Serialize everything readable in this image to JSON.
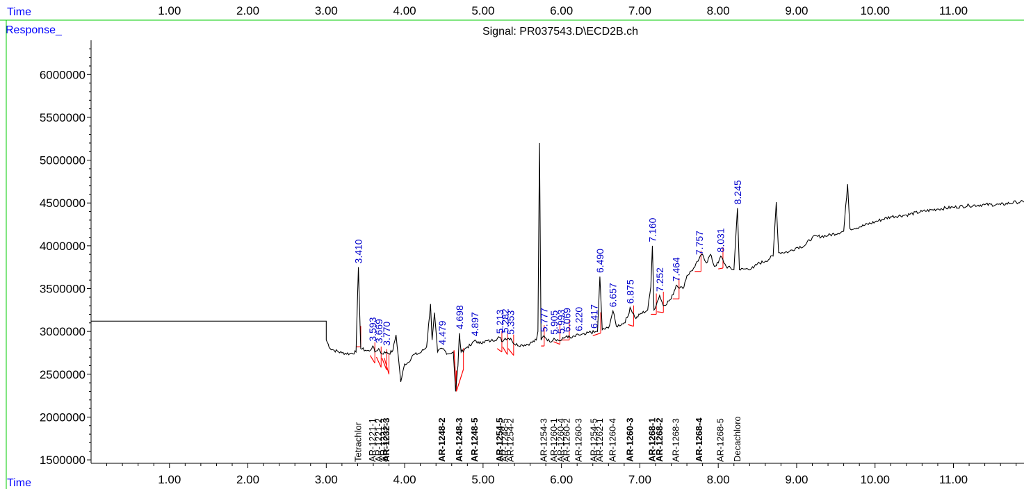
{
  "header": {
    "time_label": "Time",
    "response_label": "Response_",
    "signal_title": "Signal: PR037543.D\\ECD2B.ch"
  },
  "footer": {
    "time_label": "Time"
  },
  "colors": {
    "trace": "#000000",
    "baseline": "#ff0000",
    "retention_label": "#0000cc",
    "axis_label_blue": "#0000ff",
    "frame_green": "#00cc00"
  },
  "chart_data": {
    "type": "line",
    "title": "Signal: PR037543.D\\ECD2B.ch",
    "xlabel": "Time",
    "ylabel": "Response_",
    "xlim": [
      0.0,
      11.9
    ],
    "ylim": [
      1460000,
      6400000
    ],
    "x_ticks": [
      "1.00",
      "2.00",
      "3.00",
      "4.00",
      "5.00",
      "6.00",
      "7.00",
      "8.00",
      "9.00",
      "10.00",
      "11.00"
    ],
    "y_ticks": [
      "1500000",
      "2000000",
      "2500000",
      "3000000",
      "3500000",
      "4000000",
      "4500000",
      "5000000",
      "5500000",
      "6000000"
    ],
    "series": [
      {
        "points": [
          [
            0.0,
            3120000
          ],
          [
            3.0,
            3120000
          ],
          [
            3.0,
            2900000
          ],
          [
            3.05,
            2800000
          ],
          [
            3.1,
            2780000
          ],
          [
            3.2,
            2750000
          ],
          [
            3.3,
            2740000
          ],
          [
            3.38,
            2760000
          ],
          [
            3.41,
            3750000
          ],
          [
            3.44,
            2800000
          ],
          [
            3.5,
            2780000
          ],
          [
            3.55,
            2770000
          ],
          [
            3.593,
            2830000
          ],
          [
            3.62,
            2760000
          ],
          [
            3.669,
            2800000
          ],
          [
            3.7,
            2740000
          ],
          [
            3.77,
            2760000
          ],
          [
            3.8,
            2740000
          ],
          [
            3.85,
            2780000
          ],
          [
            3.89,
            2960000
          ],
          [
            3.92,
            2700000
          ],
          [
            3.95,
            2410000
          ],
          [
            4.0,
            2620000
          ],
          [
            4.05,
            2640000
          ],
          [
            4.1,
            2720000
          ],
          [
            4.2,
            2750000
          ],
          [
            4.28,
            2820000
          ],
          [
            4.33,
            3320000
          ],
          [
            4.35,
            2900000
          ],
          [
            4.38,
            3220000
          ],
          [
            4.42,
            2760000
          ],
          [
            4.479,
            2800000
          ],
          [
            4.55,
            2740000
          ],
          [
            4.62,
            2760000
          ],
          [
            4.65,
            2300000
          ],
          [
            4.68,
            2600000
          ],
          [
            4.698,
            2980000
          ],
          [
            4.72,
            2760000
          ],
          [
            4.8,
            2820000
          ],
          [
            4.85,
            2840000
          ],
          [
            4.897,
            2900000
          ],
          [
            4.95,
            2860000
          ],
          [
            5.0,
            2880000
          ],
          [
            5.1,
            2890000
          ],
          [
            5.213,
            2930000
          ],
          [
            5.25,
            2880000
          ],
          [
            5.282,
            2920000
          ],
          [
            5.353,
            2920000
          ],
          [
            5.4,
            2850000
          ],
          [
            5.5,
            2840000
          ],
          [
            5.6,
            2860000
          ],
          [
            5.68,
            2900000
          ],
          [
            5.7,
            3000000
          ],
          [
            5.72,
            5200000
          ],
          [
            5.74,
            2900000
          ],
          [
            5.777,
            2950000
          ],
          [
            5.85,
            2880000
          ],
          [
            5.905,
            2920000
          ],
          [
            5.98,
            2890000
          ],
          [
            6.03,
            2920000
          ],
          [
            6.069,
            2950000
          ],
          [
            6.12,
            2920000
          ],
          [
            6.22,
            2960000
          ],
          [
            6.3,
            2960000
          ],
          [
            6.35,
            2990000
          ],
          [
            6.417,
            2990000
          ],
          [
            6.46,
            3000000
          ],
          [
            6.49,
            3640000
          ],
          [
            6.52,
            3020000
          ],
          [
            6.6,
            3040000
          ],
          [
            6.657,
            3240000
          ],
          [
            6.7,
            3060000
          ],
          [
            6.8,
            3100000
          ],
          [
            6.85,
            3180000
          ],
          [
            6.875,
            3280000
          ],
          [
            6.95,
            3150000
          ],
          [
            7.0,
            3200000
          ],
          [
            7.1,
            3250000
          ],
          [
            7.14,
            3520000
          ],
          [
            7.16,
            4000000
          ],
          [
            7.18,
            3250000
          ],
          [
            7.252,
            3420000
          ],
          [
            7.3,
            3300000
          ],
          [
            7.4,
            3380000
          ],
          [
            7.464,
            3540000
          ],
          [
            7.55,
            3500000
          ],
          [
            7.6,
            3650000
          ],
          [
            7.7,
            3750000
          ],
          [
            7.757,
            3850000
          ],
          [
            7.8,
            3900000
          ],
          [
            7.85,
            3800000
          ],
          [
            7.9,
            3900000
          ],
          [
            7.95,
            3760000
          ],
          [
            8.0,
            3800000
          ],
          [
            8.031,
            3880000
          ],
          [
            8.1,
            3760000
          ],
          [
            8.2,
            3720000
          ],
          [
            8.245,
            4440000
          ],
          [
            8.27,
            3720000
          ],
          [
            8.35,
            3730000
          ],
          [
            8.45,
            3740000
          ],
          [
            8.5,
            3790000
          ],
          [
            8.6,
            3820000
          ],
          [
            8.7,
            3880000
          ],
          [
            8.74,
            4510000
          ],
          [
            8.77,
            3920000
          ],
          [
            8.9,
            3930000
          ],
          [
            9.0,
            3980000
          ],
          [
            9.1,
            4000000
          ],
          [
            9.2,
            4100000
          ],
          [
            9.4,
            4120000
          ],
          [
            9.6,
            4170000
          ],
          [
            9.65,
            4720000
          ],
          [
            9.68,
            4200000
          ],
          [
            9.8,
            4220000
          ],
          [
            10.0,
            4280000
          ],
          [
            10.2,
            4340000
          ],
          [
            10.4,
            4360000
          ],
          [
            10.6,
            4400000
          ],
          [
            10.8,
            4430000
          ],
          [
            11.0,
            4450000
          ],
          [
            11.2,
            4470000
          ],
          [
            11.4,
            4480000
          ],
          [
            11.6,
            4480000
          ],
          [
            11.8,
            4510000
          ],
          [
            11.9,
            4510000
          ]
        ]
      }
    ],
    "retention_labels": [
      {
        "x": 3.41,
        "label": "3.410",
        "y": 3760000
      },
      {
        "x": 3.593,
        "label": "3.593",
        "y": 2850000
      },
      {
        "x": 3.669,
        "label": "3.669",
        "y": 2830000
      },
      {
        "x": 3.77,
        "label": "3.770",
        "y": 2800000
      },
      {
        "x": 4.479,
        "label": "4.479",
        "y": 2810000
      },
      {
        "x": 4.698,
        "label": "4.698",
        "y": 2990000
      },
      {
        "x": 4.897,
        "label": "4.897",
        "y": 2910000
      },
      {
        "x": 5.213,
        "label": "5.213",
        "y": 2940000
      },
      {
        "x": 5.282,
        "label": "5.282",
        "y": 2950000
      },
      {
        "x": 5.353,
        "label": "5.353",
        "y": 2930000
      },
      {
        "x": 5.777,
        "label": "5.777",
        "y": 2960000
      },
      {
        "x": 5.905,
        "label": "5.905",
        "y": 2930000
      },
      {
        "x": 5.993,
        "label": "5.993",
        "y": 2940000
      },
      {
        "x": 6.069,
        "label": "6.069",
        "y": 2960000
      },
      {
        "x": 6.22,
        "label": "6.220",
        "y": 2970000
      },
      {
        "x": 6.417,
        "label": "6.417",
        "y": 3000000
      },
      {
        "x": 6.49,
        "label": "6.490",
        "y": 3650000
      },
      {
        "x": 6.657,
        "label": "6.657",
        "y": 3250000
      },
      {
        "x": 6.875,
        "label": "6.875",
        "y": 3290000
      },
      {
        "x": 7.16,
        "label": "7.160",
        "y": 4010000
      },
      {
        "x": 7.252,
        "label": "7.252",
        "y": 3430000
      },
      {
        "x": 7.464,
        "label": "7.464",
        "y": 3550000
      },
      {
        "x": 7.757,
        "label": "7.757",
        "y": 3860000
      },
      {
        "x": 8.031,
        "label": "8.031",
        "y": 3890000
      },
      {
        "x": 8.245,
        "label": "8.245",
        "y": 4450000
      }
    ],
    "compound_labels": [
      {
        "x": 3.41,
        "label": "Tetrachlor",
        "bold": false
      },
      {
        "x": 3.593,
        "label": "AR-1221-1",
        "bold": false
      },
      {
        "x": 3.669,
        "label": "AR-1221-2",
        "bold": false
      },
      {
        "x": 3.735,
        "label": "AR-1221-3",
        "bold": false
      },
      {
        "x": 3.77,
        "label": "AR-1232-3",
        "bold": true
      },
      {
        "x": 4.479,
        "label": "AR-1248-2",
        "bold": true
      },
      {
        "x": 4.698,
        "label": "AR-1248-3",
        "bold": true
      },
      {
        "x": 4.897,
        "label": "AR-1248-5",
        "bold": true
      },
      {
        "x": 5.213,
        "label": "AR-1254-5",
        "bold": true
      },
      {
        "x": 5.282,
        "label": "AR-1248-5",
        "bold": false
      },
      {
        "x": 5.353,
        "label": "AR-1254-2",
        "bold": false
      },
      {
        "x": 5.777,
        "label": "AR-1254-3",
        "bold": false
      },
      {
        "x": 5.905,
        "label": "AR-1260-1",
        "bold": false
      },
      {
        "x": 5.993,
        "label": "AR-1260-4",
        "bold": false
      },
      {
        "x": 6.069,
        "label": "AR-1260-2",
        "bold": false
      },
      {
        "x": 6.22,
        "label": "AR-1260-3",
        "bold": false
      },
      {
        "x": 6.417,
        "label": "AR-1254-5",
        "bold": false
      },
      {
        "x": 6.49,
        "label": "AR-1262-1",
        "bold": false
      },
      {
        "x": 6.657,
        "label": "AR-1260-4",
        "bold": false
      },
      {
        "x": 6.875,
        "label": "AR-1260-3",
        "bold": true
      },
      {
        "x": 7.16,
        "label": "AR-1268-1",
        "bold": true
      },
      {
        "x": 7.252,
        "label": "AR-1268-2",
        "bold": true
      },
      {
        "x": 7.464,
        "label": "AR-1268-3",
        "bold": false
      },
      {
        "x": 7.757,
        "label": "AR-1268-4",
        "bold": true
      },
      {
        "x": 8.031,
        "label": "AR-1268-5",
        "bold": false
      },
      {
        "x": 8.245,
        "label": "Decachloro",
        "bold": false
      }
    ],
    "integration_baselines": [
      [
        3.38,
        2820000,
        3.44,
        2820000
      ],
      [
        3.56,
        2720000,
        3.62,
        2630000
      ],
      [
        3.64,
        2700000,
        3.7,
        2580000
      ],
      [
        3.71,
        2690000,
        3.77,
        2550000
      ],
      [
        3.74,
        2690000,
        3.8,
        2500000
      ],
      [
        4.63,
        2780000,
        4.66,
        2300000
      ],
      [
        4.66,
        2300000,
        4.75,
        2560000
      ],
      [
        5.18,
        2800000,
        5.24,
        2760000
      ],
      [
        5.25,
        2820000,
        5.31,
        2730000
      ],
      [
        5.32,
        2800000,
        5.39,
        2720000
      ],
      [
        5.74,
        2830000,
        5.78,
        2830000
      ],
      [
        5.9,
        2880000,
        5.98,
        2850000
      ],
      [
        6.0,
        2900000,
        6.1,
        2900000
      ],
      [
        6.4,
        2950000,
        6.5,
        2980000
      ],
      [
        6.85,
        3080000,
        6.92,
        3060000
      ],
      [
        7.14,
        3200000,
        7.21,
        3200000
      ],
      [
        7.22,
        3230000,
        7.3,
        3220000
      ],
      [
        7.42,
        3380000,
        7.5,
        3380000
      ],
      [
        7.7,
        3700000,
        7.78,
        3700000
      ],
      [
        8.0,
        3730000,
        8.06,
        3740000
      ]
    ]
  }
}
